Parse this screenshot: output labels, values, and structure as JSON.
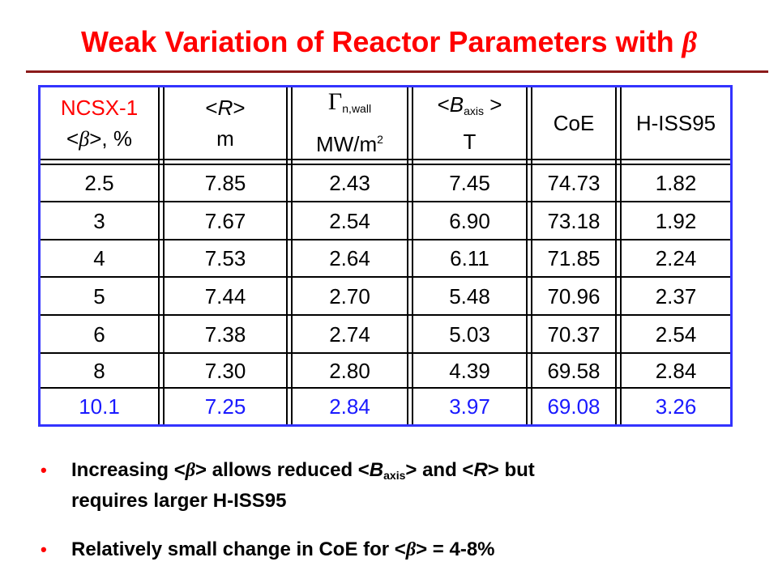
{
  "title": {
    "text": "Weak Variation of Reactor Parameters with",
    "symbol": "β"
  },
  "table": {
    "headers": [
      {
        "line1": "NCSX-1",
        "line2_pre": "<",
        "line2_sym": "β",
        "line2_post": ">, %"
      },
      {
        "line1_pre": "<",
        "line1_sym": "R",
        "line1_post": ">",
        "line2": "m"
      },
      {
        "line1_sym": "Γ",
        "line1_sub": "n,wall",
        "line2": "MW/m",
        "line2_sup": "2"
      },
      {
        "line1_pre": "<",
        "line1_sym": "B",
        "line1_sub": "axis",
        "line1_post": " >",
        "line2": "T"
      },
      {
        "line1": "CoE"
      },
      {
        "line1": "H-ISS95"
      }
    ],
    "rows": [
      [
        "2.5",
        "7.85",
        "2.43",
        "7.45",
        "74.73",
        "1.82"
      ],
      [
        "3",
        "7.67",
        "2.54",
        "6.90",
        "73.18",
        "1.92"
      ],
      [
        "4",
        "7.53",
        "2.64",
        "6.11",
        "71.85",
        "2.24"
      ],
      [
        "5",
        "7.44",
        "2.70",
        "5.48",
        "70.96",
        "2.37"
      ],
      [
        "6",
        "7.38",
        "2.74",
        "5.03",
        "70.37",
        "2.54"
      ],
      [
        "8",
        "7.30",
        "2.80",
        "4.39",
        "69.58",
        "2.84"
      ],
      [
        "10.1",
        "7.25",
        "2.84",
        "3.97",
        "69.08",
        "3.26"
      ]
    ],
    "highlight_row_index": 6,
    "colors": {
      "border": "#3333ff",
      "highlight_row_text": "#1a1aff",
      "header_first_line": "#ff0000"
    }
  },
  "bullets": {
    "marker": "•",
    "b1": {
      "t1": "Increasing <",
      "sym1": "β",
      "t2": "> allows reduced <",
      "sym2": "B",
      "sub2": "axis",
      "t3": "> and <",
      "sym3": "R",
      "t4": "> but",
      "line2": "requires larger H-ISS95"
    },
    "b2": {
      "t1": "Relatively small change in CoE for <",
      "sym1": "β",
      "t2": "> = 4-8%"
    }
  },
  "colors": {
    "title": "#ff0000",
    "title_rule": "#8b1a1a",
    "bullet_marker": "#ff0000"
  }
}
